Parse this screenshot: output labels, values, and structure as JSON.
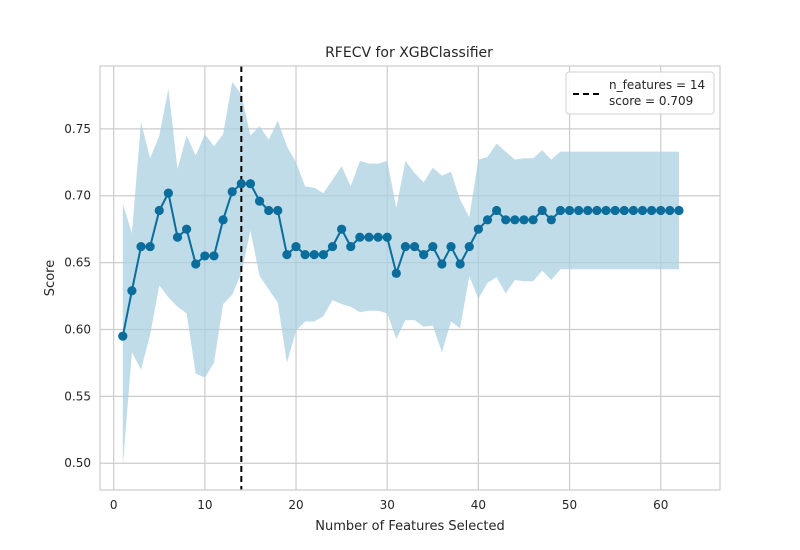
{
  "chart_data": {
    "type": "line",
    "title": "RFECV for XGBClassifier",
    "xlabel": "Number of Features Selected",
    "ylabel": "Score",
    "xlim": [
      -1.5,
      66.5
    ],
    "ylim": [
      0.48,
      0.797
    ],
    "xticks": [
      0,
      10,
      20,
      30,
      40,
      50,
      60
    ],
    "yticks": [
      0.5,
      0.55,
      0.6,
      0.65,
      0.7,
      0.75
    ],
    "xtick_labels": [
      "0",
      "10",
      "20",
      "30",
      "40",
      "50",
      "60"
    ],
    "ytick_labels": [
      "0.50",
      "0.55",
      "0.60",
      "0.65",
      "0.70",
      "0.75"
    ],
    "grid": true,
    "legend_position": "top-right",
    "legend": {
      "line1": "n_features = 14",
      "line2": "score = 0.709"
    },
    "selected": {
      "n_features": 14,
      "score": 0.709
    },
    "colors": {
      "line": "#0a6d9c",
      "band": "#a9d0e0",
      "grid": "#cccccc",
      "vline": "#000000"
    },
    "series": [
      {
        "x": [
          1,
          2,
          3,
          4,
          5,
          6,
          7,
          8,
          9,
          10,
          11,
          12,
          13,
          14,
          15,
          16,
          17,
          18,
          19,
          20,
          21,
          22,
          23,
          24,
          25,
          26,
          27,
          28,
          29,
          30,
          31,
          32,
          33,
          34,
          35,
          36,
          37,
          38,
          39,
          40,
          41,
          42,
          43,
          44,
          45,
          46,
          47,
          48,
          49,
          50,
          51,
          52,
          53,
          54,
          55,
          56,
          57,
          58,
          59,
          60,
          61,
          62
        ],
        "values": [
          0.595,
          0.629,
          0.662,
          0.662,
          0.689,
          0.702,
          0.669,
          0.675,
          0.649,
          0.655,
          0.655,
          0.682,
          0.703,
          0.709,
          0.709,
          0.696,
          0.689,
          0.689,
          0.656,
          0.662,
          0.656,
          0.656,
          0.656,
          0.662,
          0.675,
          0.662,
          0.669,
          0.669,
          0.669,
          0.669,
          0.642,
          0.662,
          0.662,
          0.656,
          0.662,
          0.649,
          0.662,
          0.649,
          0.662,
          0.675,
          0.682,
          0.689,
          0.682,
          0.682,
          0.682,
          0.682,
          0.689,
          0.682,
          0.689,
          0.689,
          0.689,
          0.689,
          0.689,
          0.689,
          0.689,
          0.689,
          0.689,
          0.689,
          0.689,
          0.689,
          0.689,
          0.689
        ],
        "upper": [
          0.694,
          0.672,
          0.755,
          0.728,
          0.745,
          0.78,
          0.72,
          0.745,
          0.73,
          0.746,
          0.737,
          0.746,
          0.785,
          0.776,
          0.745,
          0.752,
          0.742,
          0.756,
          0.737,
          0.725,
          0.707,
          0.706,
          0.702,
          0.712,
          0.722,
          0.707,
          0.726,
          0.724,
          0.724,
          0.726,
          0.691,
          0.726,
          0.717,
          0.71,
          0.721,
          0.715,
          0.718,
          0.697,
          0.684,
          0.727,
          0.729,
          0.739,
          0.733,
          0.727,
          0.728,
          0.728,
          0.734,
          0.727,
          0.733,
          0.733,
          0.733,
          0.733,
          0.733,
          0.733,
          0.733,
          0.733,
          0.733,
          0.733,
          0.733,
          0.733,
          0.733,
          0.733
        ],
        "lower": [
          0.498,
          0.583,
          0.57,
          0.596,
          0.633,
          0.624,
          0.617,
          0.612,
          0.567,
          0.564,
          0.575,
          0.619,
          0.626,
          0.642,
          0.674,
          0.64,
          0.63,
          0.62,
          0.575,
          0.599,
          0.606,
          0.606,
          0.61,
          0.622,
          0.619,
          0.617,
          0.613,
          0.614,
          0.614,
          0.612,
          0.593,
          0.607,
          0.607,
          0.602,
          0.603,
          0.583,
          0.606,
          0.601,
          0.64,
          0.623,
          0.635,
          0.639,
          0.627,
          0.637,
          0.636,
          0.636,
          0.644,
          0.637,
          0.645,
          0.645,
          0.645,
          0.645,
          0.645,
          0.645,
          0.645,
          0.645,
          0.645,
          0.645,
          0.645,
          0.645,
          0.645,
          0.645
        ]
      }
    ]
  }
}
